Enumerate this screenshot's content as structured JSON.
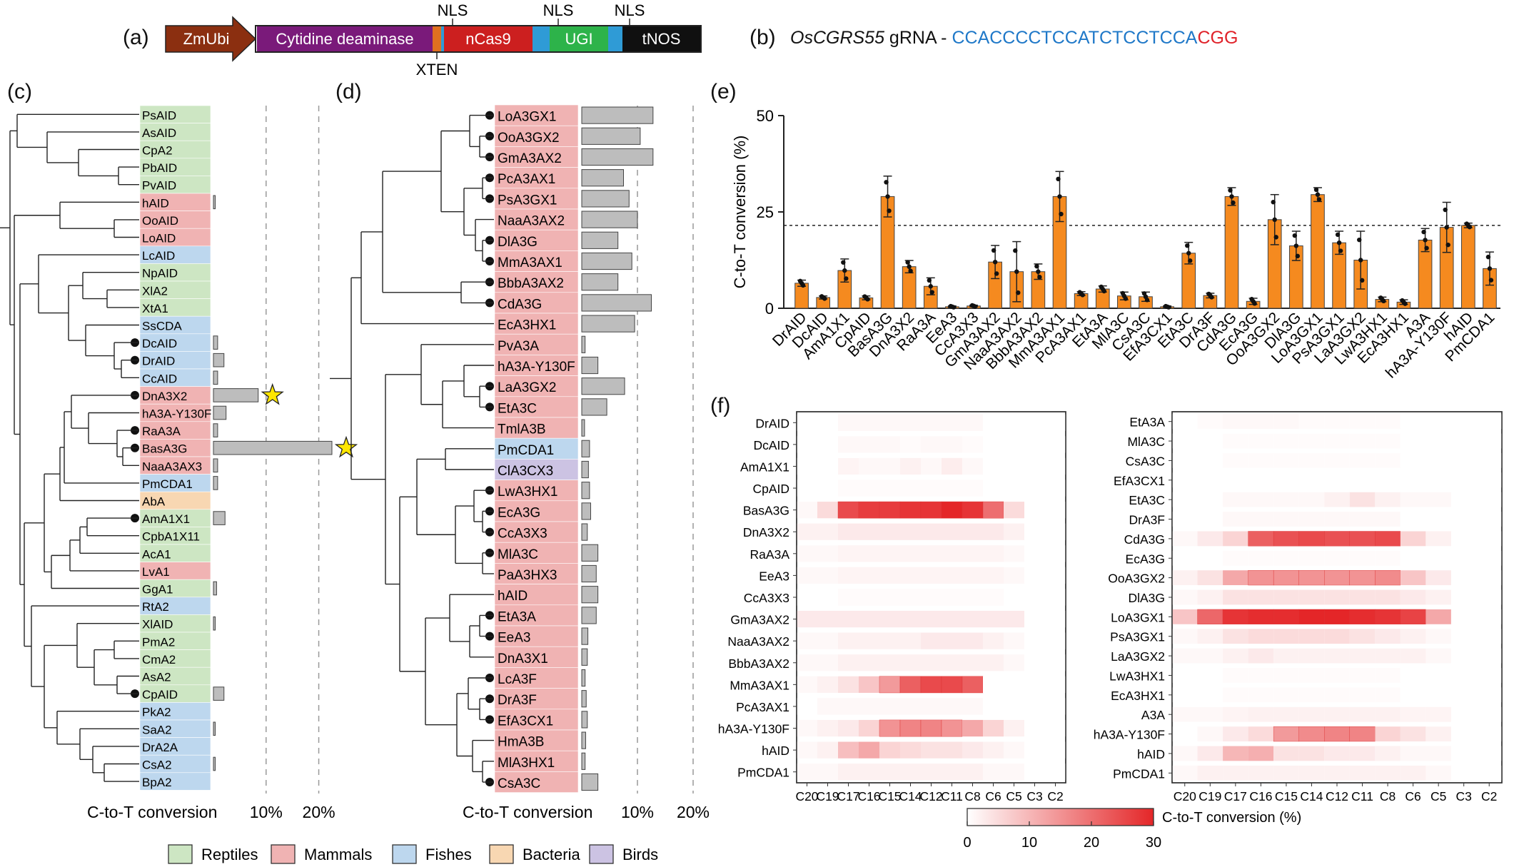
{
  "panels": {
    "a": "(a)",
    "b": "(b)",
    "c": "(c)",
    "d": "(d)",
    "e": "(e)",
    "f": "(f)"
  },
  "construct": {
    "segments": [
      {
        "label": "ZmUbi",
        "color": "#8b2f10"
      },
      {
        "label": "Cytidine deaminase",
        "color": "#7a1a7a"
      },
      {
        "label": "",
        "color": "#e07020"
      },
      {
        "label": "",
        "color": "#2f9bd6"
      },
      {
        "label": "nCas9",
        "color": "#cc1f1f"
      },
      {
        "label": "",
        "color": "#2f9bd6"
      },
      {
        "label": "UGI",
        "color": "#2db34a"
      },
      {
        "label": "",
        "color": "#2f9bd6"
      },
      {
        "label": "tNOS",
        "color": "#101010"
      }
    ],
    "nls_label": "NLS",
    "xten_label": "XTEN"
  },
  "grna": {
    "gene": "OsCGRS55",
    "suffix": " gRNA - ",
    "protospacer": "CCACCCCTCCATCTCCTCCA",
    "pam": "CGG"
  },
  "legend": {
    "items": [
      {
        "label": "Reptiles",
        "color": "#cde6c3"
      },
      {
        "label": "Mammals",
        "color": "#f0b3b3"
      },
      {
        "label": "Fishes",
        "color": "#bdd7ee"
      },
      {
        "label": "Bacteria",
        "color": "#f8d7b2"
      },
      {
        "label": "Birds",
        "color": "#ccc3e3"
      }
    ],
    "heat_label": "C-to-T conversion (%)",
    "heat_ticks": [
      0,
      10,
      20,
      30
    ]
  },
  "chart_data": [
    {
      "panel": "c",
      "type": "bar",
      "xlabel": "C-to-T conversion",
      "xticks": [
        "10%",
        "20%"
      ],
      "xlim": [
        0,
        25
      ],
      "categories": [
        "PsAID",
        "AsAID",
        "CpA2",
        "PbAID",
        "PvAID",
        "hAID",
        "OoAID",
        "LoAID",
        "LcAID",
        "NpAID",
        "XlA2",
        "XtA1",
        "SsCDA",
        "DcAID",
        "DrAID",
        "CcAID",
        "DnA3X2",
        "hA3A-Y130F",
        "RaA3A",
        "BasA3G",
        "NaaA3AX3",
        "PmCDA1",
        "AbA",
        "AmA1X1",
        "CpbA1X11",
        "AcA1",
        "LvA1",
        "GgA1",
        "RtA2",
        "XlAID",
        "PmA2",
        "CmA2",
        "AsA2",
        "CpAID",
        "PkA2",
        "SaA2",
        "DrA2A",
        "CsA2",
        "BpA2"
      ],
      "groups": [
        "Reptiles",
        "Reptiles",
        "Reptiles",
        "Reptiles",
        "Reptiles",
        "Mammals",
        "Mammals",
        "Mammals",
        "Fishes",
        "Reptiles",
        "Reptiles",
        "Reptiles",
        "Fishes",
        "Fishes",
        "Fishes",
        "Fishes",
        "Mammals",
        "Mammals",
        "Mammals",
        "Mammals",
        "Mammals",
        "Fishes",
        "Bacteria",
        "Reptiles",
        "Reptiles",
        "Reptiles",
        "Mammals",
        "Reptiles",
        "Fishes",
        "Reptiles",
        "Reptiles",
        "Reptiles",
        "Reptiles",
        "Reptiles",
        "Fishes",
        "Fishes",
        "Fishes",
        "Fishes",
        "Fishes"
      ],
      "values": [
        0,
        0,
        0,
        0,
        0,
        0.3,
        0,
        0,
        0,
        0,
        0,
        0,
        0,
        0.8,
        2.0,
        0.8,
        8.5,
        2.4,
        0.8,
        22.5,
        0.8,
        0.8,
        0,
        2.2,
        0,
        0,
        0,
        0.6,
        0,
        0.2,
        0,
        0,
        0,
        2.0,
        0,
        0.2,
        0,
        0.2,
        0
      ],
      "marked": [
        16,
        19
      ],
      "dots": [
        "DcAID",
        "DrAID",
        "DnA3X2",
        "RaA3A",
        "BasA3G",
        "AmA1X1",
        "CpAID"
      ]
    },
    {
      "panel": "d",
      "type": "bar",
      "xlabel": "C-to-T conversion",
      "xticks": [
        "10%",
        "20%"
      ],
      "xlim": [
        0,
        25
      ],
      "categories": [
        "LoA3GX1",
        "OoA3GX2",
        "GmA3AX2",
        "PcA3AX1",
        "PsA3GX1",
        "NaaA3AX2",
        "DlA3G",
        "MmA3AX1",
        "BbbA3AX2",
        "CdA3G",
        "EcA3HX1",
        "PvA3A",
        "hA3A-Y130F",
        "LaA3GX2",
        "EtA3C",
        "TmlA3B",
        "PmCDA1",
        "ClA3CX3",
        "LwA3HX1",
        "EcA3G",
        "CcA3X3",
        "MlA3C",
        "PaA3HX3",
        "hAID",
        "EtA3A",
        "EeA3",
        "DnA3X1",
        "LcA3F",
        "DrA3F",
        "EfA3CX1",
        "HmA3B",
        "MlA3HX1",
        "CsA3C"
      ],
      "groups": [
        "Mammals",
        "Mammals",
        "Mammals",
        "Mammals",
        "Mammals",
        "Mammals",
        "Mammals",
        "Mammals",
        "Mammals",
        "Mammals",
        "Mammals",
        "Mammals",
        "Mammals",
        "Mammals",
        "Mammals",
        "Mammals",
        "Fishes",
        "Birds",
        "Mammals",
        "Mammals",
        "Mammals",
        "Mammals",
        "Mammals",
        "Mammals",
        "Mammals",
        "Mammals",
        "Mammals",
        "Mammals",
        "Mammals",
        "Mammals",
        "Mammals",
        "Mammals",
        "Mammals"
      ],
      "values": [
        12.8,
        10.5,
        12.8,
        7.5,
        8.5,
        10.0,
        6.5,
        9.0,
        6.5,
        12.5,
        9.5,
        0.6,
        2.9,
        7.7,
        4.5,
        0.5,
        1.4,
        1.2,
        1.4,
        1.6,
        1.0,
        2.9,
        2.6,
        2.9,
        2.6,
        1.1,
        1.0,
        0.6,
        0.8,
        1.0,
        0.7,
        0.6,
        2.9
      ],
      "dots": [
        "LoA3GX1",
        "OoA3GX2",
        "GmA3AX2",
        "PcA3AX1",
        "PsA3GX1",
        "DlA3G",
        "MmA3AX1",
        "BbbA3AX2",
        "CdA3G",
        "LaA3GX2",
        "EtA3C",
        "LwA3HX1",
        "EcA3G",
        "CcA3X3",
        "MlA3C",
        "EtA3A",
        "EeA3",
        "LcA3F",
        "DrA3F",
        "EfA3CX1",
        "CsA3C"
      ]
    },
    {
      "panel": "e",
      "type": "bar",
      "ylabel": "C-to-T conversion (%)",
      "ylim": [
        0,
        50
      ],
      "yticks": [
        0,
        25,
        50
      ],
      "reference_line": 21.5,
      "bar_color": "#f58a1f",
      "categories": [
        "DrAID",
        "DcAID",
        "AmA1X1",
        "CpAID",
        "BasA3G",
        "DnA3X2",
        "RaA3A",
        "EeA3",
        "CcA3X3",
        "GmA3AX2",
        "NaaA3AX2",
        "BbbA3AX2",
        "MmA3AX1",
        "PcA3AX1",
        "EtA3A",
        "MlA3C",
        "CsA3C",
        "EfA3CX1",
        "EtA3C",
        "DrA3F",
        "CdA3G",
        "EcA3G",
        "OoA3GX2",
        "DlA3G",
        "LoA3GX1",
        "PsA3GX1",
        "LaA3GX2",
        "LwA3HX1",
        "EcA3HX1",
        "A3A",
        "hA3A-Y130F",
        "hAID",
        "PmCDA1"
      ],
      "values": [
        6.5,
        2.8,
        9.8,
        2.7,
        29.0,
        10.8,
        5.7,
        0.4,
        0.6,
        12.0,
        9.5,
        9.5,
        29.0,
        3.8,
        5.0,
        3.2,
        3.0,
        0.4,
        14.3,
        3.3,
        29.0,
        1.8,
        23.0,
        16.2,
        29.5,
        17.0,
        12.5,
        2.3,
        1.6,
        17.7,
        21.0,
        21.5,
        10.3
      ],
      "errors": [
        0.8,
        0.4,
        3.0,
        0.5,
        5.3,
        1.6,
        2.2,
        0.2,
        0.2,
        4.3,
        7.8,
        2.0,
        6.5,
        0.5,
        0.8,
        1.0,
        1.2,
        0.2,
        2.8,
        0.6,
        2.3,
        0.8,
        6.5,
        3.8,
        1.8,
        3.0,
        7.5,
        0.6,
        0.6,
        3.0,
        6.5,
        0.6,
        4.3
      ]
    },
    {
      "panel": "f-left",
      "type": "heatmap",
      "columns": [
        "C20",
        "C19",
        "C17",
        "C16",
        "C15",
        "C14",
        "C12",
        "C11",
        "C8",
        "C6",
        "C5",
        "C3",
        "C2"
      ],
      "rows": [
        "DrAID",
        "DcAID",
        "AmA1X1",
        "CpAID",
        "BasA3G",
        "DnA3X2",
        "RaA3A",
        "EeA3",
        "CcA3X3",
        "GmA3AX2",
        "NaaA3AX2",
        "BbbA3AX2",
        "MmA3AX1",
        "PcA3AX1",
        "hA3A-Y130F",
        "hAID",
        "PmCDA1"
      ],
      "zlim": [
        0,
        30
      ],
      "values": [
        [
          0,
          0,
          1,
          1,
          1,
          1,
          1,
          1,
          1,
          0,
          0,
          0,
          0
        ],
        [
          0,
          0,
          1,
          1,
          1,
          0.5,
          1,
          1,
          0.5,
          0,
          0,
          0,
          0
        ],
        [
          0,
          0,
          1.5,
          1,
          1,
          2,
          1,
          2.5,
          1,
          0,
          0,
          0,
          0
        ],
        [
          0,
          0,
          0.5,
          0.5,
          0.5,
          0.5,
          0.5,
          0.5,
          0.5,
          0,
          0,
          0,
          0
        ],
        [
          1,
          5,
          25,
          27,
          27,
          28,
          28,
          30,
          28,
          20,
          5,
          0,
          0
        ],
        [
          2,
          2,
          3,
          3,
          3,
          3,
          3,
          3,
          3,
          3,
          2,
          0,
          0
        ],
        [
          1,
          1,
          1.5,
          1.5,
          1.5,
          1.5,
          1.5,
          1.5,
          1.5,
          1.5,
          1,
          0,
          0
        ],
        [
          1,
          1,
          1.5,
          1.5,
          1.5,
          1.5,
          1.5,
          1.5,
          1.5,
          1.5,
          1,
          0,
          0
        ],
        [
          0,
          0,
          0.5,
          0.5,
          0.5,
          0.5,
          0.5,
          0.5,
          0.5,
          0.5,
          0,
          0,
          0
        ],
        [
          3,
          3,
          3,
          3,
          3,
          3,
          3,
          3,
          3,
          3,
          3,
          0,
          0
        ],
        [
          1,
          1,
          2,
          2,
          2,
          2,
          3,
          3,
          3,
          2,
          1,
          0,
          0
        ],
        [
          1,
          1,
          2,
          2,
          2,
          2,
          2,
          2,
          2,
          2,
          1,
          0,
          0
        ],
        [
          1,
          2,
          4,
          8,
          14,
          22,
          25,
          25,
          22,
          0,
          0,
          0,
          0
        ],
        [
          0,
          1,
          1,
          1,
          1,
          1,
          1,
          1,
          1,
          0,
          0,
          0,
          0
        ],
        [
          1,
          2,
          3,
          6,
          15,
          17,
          17,
          15,
          12,
          6,
          2,
          0,
          0
        ],
        [
          1,
          2,
          9,
          12,
          6,
          5,
          4,
          4,
          3,
          2,
          1,
          0,
          0
        ],
        [
          1,
          1,
          2,
          2,
          2,
          2,
          2,
          2,
          2,
          1,
          1,
          0,
          0
        ]
      ]
    },
    {
      "panel": "f-right",
      "type": "heatmap",
      "columns": [
        "C20",
        "C19",
        "C17",
        "C16",
        "C15",
        "C14",
        "C12",
        "C11",
        "C8",
        "C6",
        "C5",
        "C3",
        "C2"
      ],
      "rows": [
        "EtA3A",
        "MlA3C",
        "CsA3C",
        "EfA3CX1",
        "EtA3C",
        "DrA3F",
        "CdA3G",
        "EcA3G",
        "OoA3GX2",
        "DlA3G",
        "LoA3GX1",
        "PsA3GX1",
        "LaA3GX2",
        "LwA3HX1",
        "EcA3HX1",
        "A3A",
        "hA3A-Y130F",
        "hAID",
        "PmCDA1"
      ],
      "zlim": [
        0,
        30
      ],
      "values": [
        [
          0,
          0.5,
          1,
          1,
          1,
          0.5,
          0.5,
          0.5,
          0.5,
          0,
          0,
          0,
          0
        ],
        [
          0,
          0,
          0.5,
          0.5,
          0.5,
          0.5,
          0.5,
          0.5,
          0.5,
          0,
          0,
          0,
          0
        ],
        [
          0,
          0,
          0.5,
          0.5,
          0.5,
          0.5,
          0.5,
          0.5,
          0.5,
          0,
          0,
          0,
          0
        ],
        [
          0,
          0,
          0,
          0,
          0,
          0,
          0,
          0,
          0,
          0,
          0,
          0,
          0
        ],
        [
          0,
          0,
          1,
          1,
          1,
          1,
          2,
          4,
          2,
          1,
          1,
          0,
          0
        ],
        [
          0,
          0,
          1,
          1,
          1,
          1,
          1,
          1,
          1,
          0,
          0,
          0,
          0
        ],
        [
          1,
          3,
          6,
          22,
          24,
          25,
          24,
          24,
          25,
          6,
          2,
          0,
          0
        ],
        [
          0,
          0,
          0.5,
          0.5,
          0.5,
          0.5,
          0.5,
          0.5,
          0.5,
          0,
          0,
          0,
          0
        ],
        [
          2,
          4,
          12,
          15,
          15,
          15,
          15,
          15,
          16,
          8,
          3,
          0,
          0
        ],
        [
          1,
          2,
          4,
          4,
          4,
          4,
          4,
          4,
          4,
          3,
          2,
          0,
          0
        ],
        [
          8,
          21,
          28,
          29,
          29,
          30,
          30,
          29,
          28,
          26,
          12,
          0,
          0
        ],
        [
          1,
          2,
          4,
          5,
          5,
          5,
          5,
          4,
          3,
          2,
          1,
          0,
          0
        ],
        [
          1,
          1,
          2,
          3,
          2,
          2,
          2,
          2,
          2,
          2,
          1,
          0,
          0
        ],
        [
          0,
          0,
          0.5,
          0.5,
          0.5,
          0.5,
          0.5,
          0.5,
          0.5,
          0,
          0,
          0,
          0
        ],
        [
          0,
          0,
          0.5,
          0.5,
          0.5,
          0.5,
          0.5,
          0.5,
          0.5,
          0,
          0,
          0,
          0
        ],
        [
          1,
          1,
          1.5,
          2,
          2,
          2,
          2,
          2,
          2,
          1.5,
          1.5,
          0,
          0
        ],
        [
          0,
          1,
          3,
          5,
          14,
          16,
          17,
          17,
          6,
          4,
          2,
          0,
          0
        ],
        [
          1,
          3,
          10,
          11,
          4,
          4,
          3,
          3,
          2,
          1,
          1,
          0,
          0
        ],
        [
          1,
          2,
          2,
          2,
          2,
          2,
          2,
          2,
          2,
          2,
          1,
          0,
          0
        ]
      ]
    }
  ]
}
